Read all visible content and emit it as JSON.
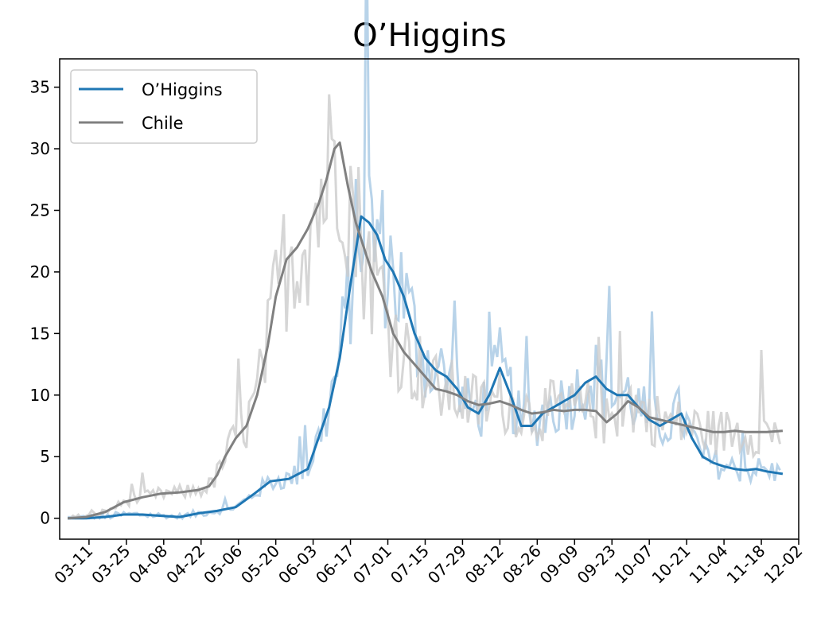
{
  "chart_data": {
    "type": "line",
    "title": "O’Higgins",
    "xlabel": "",
    "ylabel": "",
    "ylim": [
      -1.7,
      37.3
    ],
    "yticks": [
      0,
      5,
      10,
      15,
      20,
      25,
      30,
      35
    ],
    "x_start_date": "2020-02-29",
    "x_end_date": "2020-12-02",
    "xticks": [
      "03-11",
      "03-25",
      "04-08",
      "04-22",
      "05-06",
      "05-20",
      "06-03",
      "06-17",
      "07-01",
      "07-15",
      "07-29",
      "08-12",
      "08-26",
      "09-09",
      "09-23",
      "10-07",
      "10-21",
      "11-04",
      "11-18",
      "12-02"
    ],
    "grid": false,
    "legend": {
      "position": "top-left",
      "entries": [
        "O’Higgins",
        "Chile"
      ]
    },
    "series": [
      {
        "name": "O’Higgins",
        "color": "#1f77b4",
        "smoothed": [
          [
            "03-03",
            0
          ],
          [
            "03-10",
            0
          ],
          [
            "03-17",
            0.1
          ],
          [
            "03-24",
            0.3
          ],
          [
            "03-31",
            0.3
          ],
          [
            "04-07",
            0.2
          ],
          [
            "04-14",
            0.1
          ],
          [
            "04-21",
            0.4
          ],
          [
            "04-28",
            0.6
          ],
          [
            "05-05",
            0.9
          ],
          [
            "05-12",
            2
          ],
          [
            "05-18",
            3
          ],
          [
            "05-25",
            3.2
          ],
          [
            "06-01",
            4
          ],
          [
            "06-05",
            6.5
          ],
          [
            "06-09",
            9
          ],
          [
            "06-13",
            13
          ],
          [
            "06-17",
            19
          ],
          [
            "06-21",
            24.5
          ],
          [
            "06-24",
            24
          ],
          [
            "06-27",
            23
          ],
          [
            "06-30",
            21
          ],
          [
            "07-03",
            20
          ],
          [
            "07-07",
            18
          ],
          [
            "07-11",
            15
          ],
          [
            "07-15",
            13
          ],
          [
            "07-19",
            12
          ],
          [
            "07-23",
            11.5
          ],
          [
            "07-27",
            10.5
          ],
          [
            "07-31",
            9
          ],
          [
            "08-04",
            8.5
          ],
          [
            "08-08",
            10
          ],
          [
            "08-12",
            12.2
          ],
          [
            "08-16",
            10
          ],
          [
            "08-20",
            7.5
          ],
          [
            "08-24",
            7.5
          ],
          [
            "08-28",
            8.5
          ],
          [
            "09-01",
            9
          ],
          [
            "09-05",
            9.5
          ],
          [
            "09-09",
            10
          ],
          [
            "09-13",
            11
          ],
          [
            "09-17",
            11.5
          ],
          [
            "09-21",
            10.5
          ],
          [
            "09-25",
            10
          ],
          [
            "09-29",
            10
          ],
          [
            "10-03",
            9
          ],
          [
            "10-07",
            8
          ],
          [
            "10-11",
            7.5
          ],
          [
            "10-15",
            8
          ],
          [
            "10-19",
            8.5
          ],
          [
            "10-23",
            6.5
          ],
          [
            "10-27",
            5
          ],
          [
            "10-31",
            4.5
          ],
          [
            "11-04",
            4.2
          ],
          [
            "11-08",
            4
          ],
          [
            "11-12",
            3.9
          ],
          [
            "11-16",
            4
          ],
          [
            "11-20",
            3.8
          ],
          [
            "11-26",
            3.6
          ]
        ]
      },
      {
        "name": "Chile",
        "color": "#808080",
        "smoothed": [
          [
            "03-03",
            0
          ],
          [
            "03-10",
            0.1
          ],
          [
            "03-17",
            0.5
          ],
          [
            "03-24",
            1.3
          ],
          [
            "03-31",
            1.7
          ],
          [
            "04-07",
            2
          ],
          [
            "04-14",
            2.1
          ],
          [
            "04-21",
            2.3
          ],
          [
            "04-25",
            2.6
          ],
          [
            "04-28",
            3.5
          ],
          [
            "05-01",
            5
          ],
          [
            "05-05",
            6.5
          ],
          [
            "05-09",
            7.5
          ],
          [
            "05-13",
            10
          ],
          [
            "05-17",
            14
          ],
          [
            "05-20",
            18
          ],
          [
            "05-24",
            21
          ],
          [
            "05-28",
            22
          ],
          [
            "06-01",
            23.5
          ],
          [
            "06-05",
            25.5
          ],
          [
            "06-08",
            27.5
          ],
          [
            "06-11",
            30
          ],
          [
            "06-13",
            30.5
          ],
          [
            "06-16",
            27
          ],
          [
            "06-19",
            24
          ],
          [
            "06-22",
            22
          ],
          [
            "06-25",
            20
          ],
          [
            "06-29",
            18
          ],
          [
            "07-03",
            15
          ],
          [
            "07-07",
            13.5
          ],
          [
            "07-11",
            12.5
          ],
          [
            "07-15",
            11.5
          ],
          [
            "07-19",
            10.5
          ],
          [
            "07-23",
            10.3
          ],
          [
            "07-27",
            10
          ],
          [
            "07-31",
            9.5
          ],
          [
            "08-04",
            9.2
          ],
          [
            "08-08",
            9.3
          ],
          [
            "08-12",
            9.5
          ],
          [
            "08-16",
            9.2
          ],
          [
            "08-20",
            8.8
          ],
          [
            "08-24",
            8.5
          ],
          [
            "08-28",
            8.6
          ],
          [
            "09-01",
            8.8
          ],
          [
            "09-05",
            8.7
          ],
          [
            "09-09",
            8.8
          ],
          [
            "09-13",
            8.8
          ],
          [
            "09-17",
            8.7
          ],
          [
            "09-21",
            7.8
          ],
          [
            "09-25",
            8.5
          ],
          [
            "09-29",
            9.5
          ],
          [
            "10-03",
            9
          ],
          [
            "10-07",
            8.2
          ],
          [
            "10-11",
            8
          ],
          [
            "10-15",
            7.8
          ],
          [
            "10-19",
            7.6
          ],
          [
            "10-23",
            7.4
          ],
          [
            "10-27",
            7.2
          ],
          [
            "10-31",
            7
          ],
          [
            "11-04",
            7
          ],
          [
            "11-08",
            7.1
          ],
          [
            "11-12",
            7
          ],
          [
            "11-16",
            7
          ],
          [
            "11-20",
            7
          ],
          [
            "11-26",
            7.1
          ]
        ]
      }
    ]
  }
}
